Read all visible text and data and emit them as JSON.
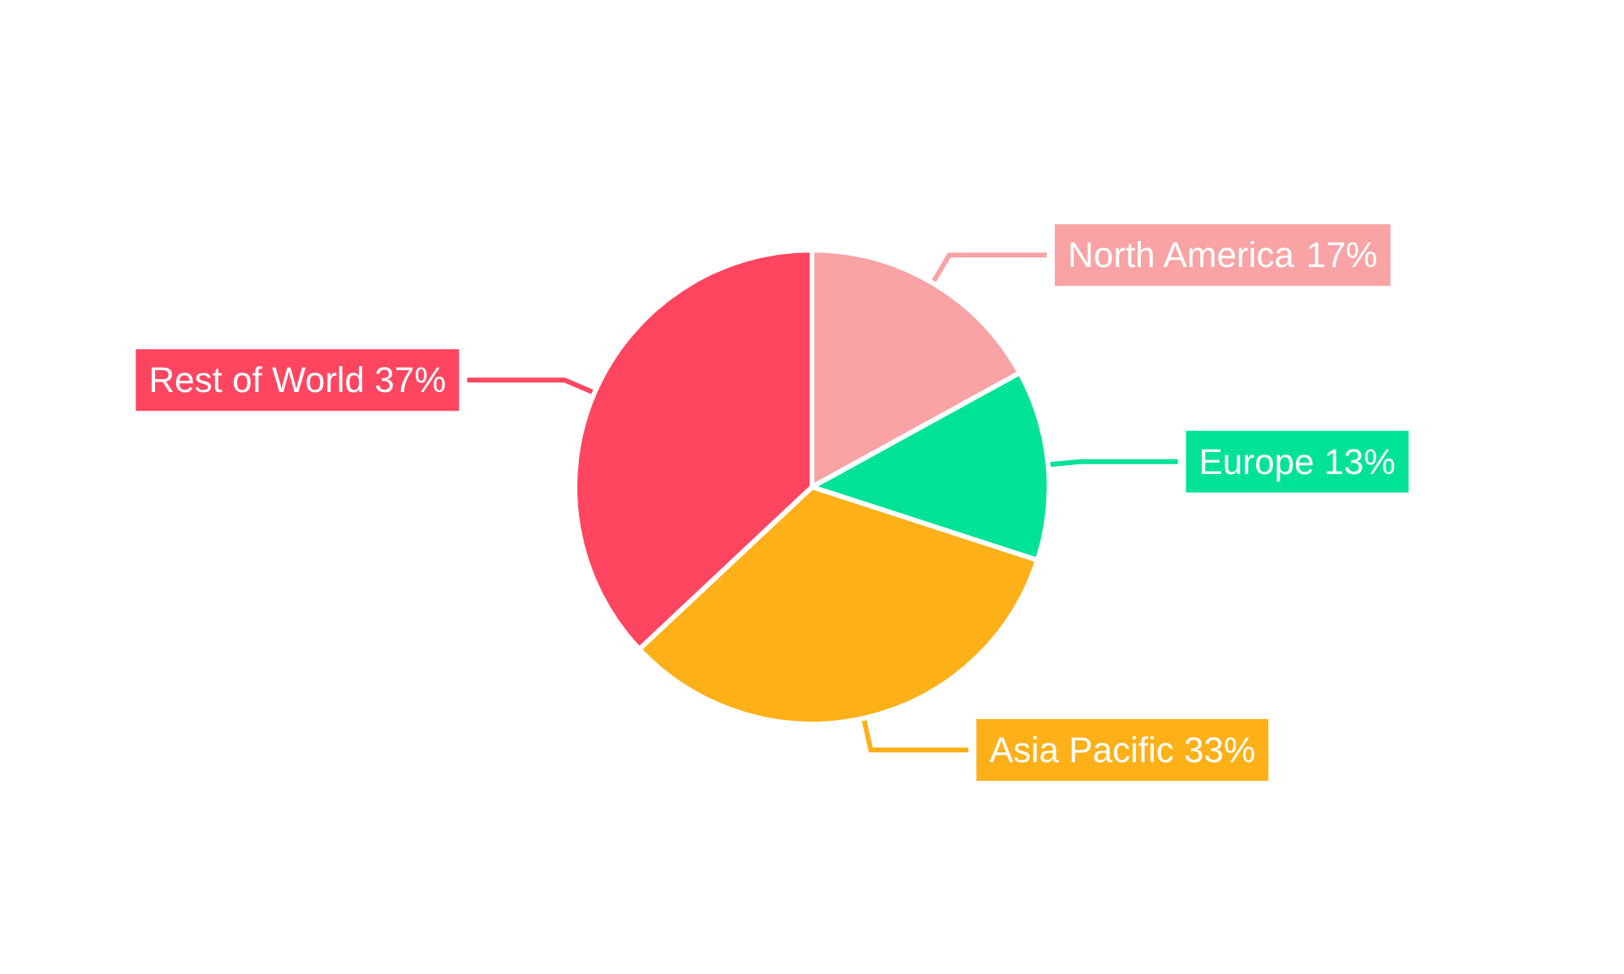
{
  "chart_data": {
    "type": "pie",
    "categories": [
      "North America",
      "Europe",
      "Asia Pacific",
      "Rest of World"
    ],
    "values": [
      17,
      13,
      33,
      37
    ],
    "value_labels": [
      "17%",
      "13%",
      "33%",
      "37%"
    ],
    "colors": [
      "#f9a3a4",
      "#00e396",
      "#feb019",
      "#ff4560"
    ],
    "legend": false
  }
}
